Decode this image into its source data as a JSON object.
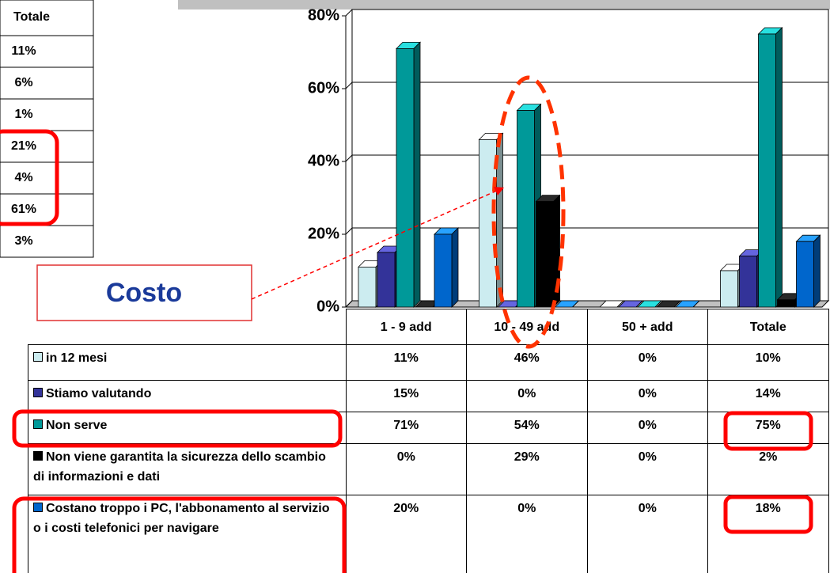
{
  "left_table": {
    "header": "Totale",
    "rows": [
      "11%",
      "6%",
      "1%",
      "21%",
      "4%",
      "61%",
      "3%"
    ]
  },
  "callout": "Costo",
  "chart_data": {
    "type": "bar",
    "categories": [
      "1 - 9 add",
      "10 - 49 add",
      "50 + add",
      "Totale"
    ],
    "series": [
      {
        "name": "in 12 mesi",
        "color": "#ccecf0",
        "values": [
          11,
          46,
          0,
          10
        ],
        "value_labels": [
          "11%",
          "46%",
          "0%",
          "10%"
        ]
      },
      {
        "name": "Stiamo valutando",
        "color": "#333399",
        "values": [
          15,
          0,
          0,
          14
        ],
        "value_labels": [
          "15%",
          "0%",
          "0%",
          "14%"
        ]
      },
      {
        "name": "Non serve",
        "color": "#009999",
        "values": [
          71,
          54,
          0,
          75
        ],
        "value_labels": [
          "71%",
          "54%",
          "0%",
          "75%"
        ]
      },
      {
        "name": "Non viene garantita la sicurezza dello scambio di informazioni e dati",
        "color": "#000000",
        "values": [
          0,
          29,
          0,
          2
        ],
        "value_labels": [
          "0%",
          "29%",
          "0%",
          "2%"
        ]
      },
      {
        "name": "Costano troppo i PC, l'abbonamento al servizio o i costi telefonici per navigare",
        "color": "#0066cc",
        "values": [
          20,
          0,
          0,
          18
        ],
        "value_labels": [
          "20%",
          "0%",
          "0%",
          "18%"
        ]
      }
    ],
    "ylim": [
      0,
      80
    ],
    "yticks": [
      {
        "value": 0,
        "label": "0%"
      },
      {
        "value": 20,
        "label": "20%"
      },
      {
        "value": 40,
        "label": "40%"
      },
      {
        "value": 60,
        "label": "60%"
      },
      {
        "value": 80,
        "label": "80%"
      }
    ],
    "grid": true
  }
}
